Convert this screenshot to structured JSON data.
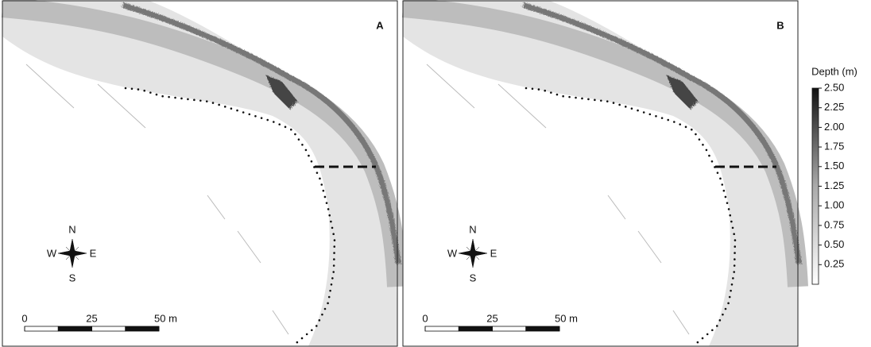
{
  "panels": [
    {
      "label": "A"
    },
    {
      "label": "B"
    }
  ],
  "compass": {
    "north": "N",
    "east": "E",
    "south": "S",
    "west": "W"
  },
  "scale_bar": {
    "lim": [
      0,
      50
    ],
    "ticks": [
      0,
      25,
      {
        "value": 50,
        "label": "50 m"
      }
    ]
  },
  "legend": {
    "title": "Depth (m)",
    "lim": [
      0,
      2.5
    ],
    "ticks": [
      {
        "value": 2.5,
        "label": "2.50"
      },
      {
        "value": 2.25,
        "label": "2.25"
      },
      {
        "value": 2.0,
        "label": "2.00"
      },
      {
        "value": 1.75,
        "label": "1.75"
      },
      {
        "value": 1.5,
        "label": "1.50"
      },
      {
        "value": 1.25,
        "label": "1.25"
      },
      {
        "value": 1.0,
        "label": "1.00"
      },
      {
        "value": 0.75,
        "label": "0.75"
      },
      {
        "value": 0.5,
        "label": "0.50"
      },
      {
        "value": 0.25,
        "label": "0.25"
      }
    ]
  }
}
